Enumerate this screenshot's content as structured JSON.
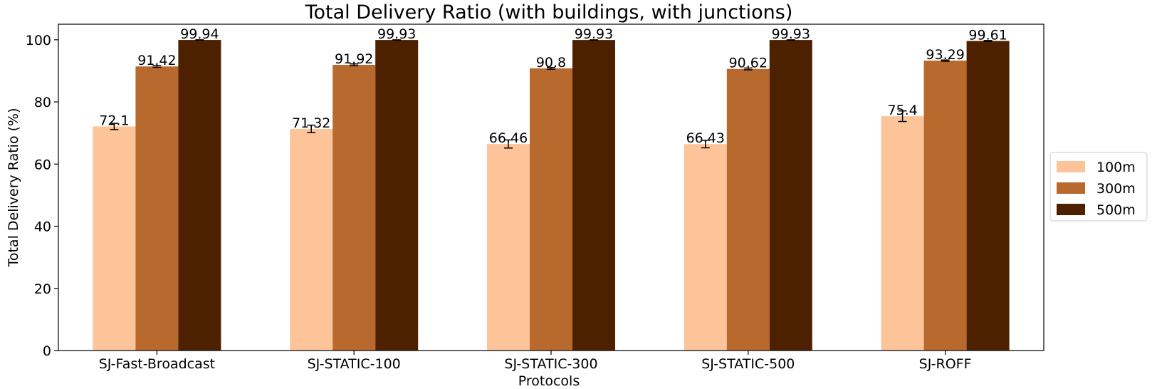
{
  "chart_data": {
    "type": "bar",
    "title": "Total Delivery Ratio (with buildings, with junctions)",
    "xlabel": "Protocols",
    "ylabel": "Total Delivery Ratio (%)",
    "ylim": [
      0,
      105
    ],
    "yticks": [
      0,
      20,
      40,
      60,
      80,
      100
    ],
    "grid": false,
    "legend_placement": "center-right outside",
    "categories": [
      "SJ-Fast-Broadcast",
      "SJ-STATIC-100",
      "SJ-STATIC-300",
      "SJ-STATIC-500",
      "SJ-ROFF"
    ],
    "series": [
      {
        "name": "100m",
        "color": "#fdc49a",
        "values": [
          72.1,
          71.32,
          66.46,
          66.43,
          75.4
        ],
        "labels": [
          "72.1",
          "71.32",
          "66.46",
          "66.43",
          "75.4"
        ],
        "errors": [
          1.0,
          1.2,
          1.3,
          1.2,
          1.7
        ]
      },
      {
        "name": "300m",
        "color": "#b8692e",
        "values": [
          91.42,
          91.92,
          90.8,
          90.62,
          93.29
        ],
        "labels": [
          "91.42",
          "91.92",
          "90.8",
          "90.62",
          "93.29"
        ],
        "errors": [
          0.3,
          0.3,
          0.3,
          0.3,
          0.2
        ]
      },
      {
        "name": "500m",
        "color": "#4d2000",
        "values": [
          99.94,
          99.93,
          99.93,
          99.93,
          99.61
        ],
        "labels": [
          "99.94",
          "99.93",
          "99.93",
          "99.93",
          "99.61"
        ],
        "errors": [
          0.05,
          0.05,
          0.05,
          0.05,
          0.15
        ]
      }
    ]
  }
}
